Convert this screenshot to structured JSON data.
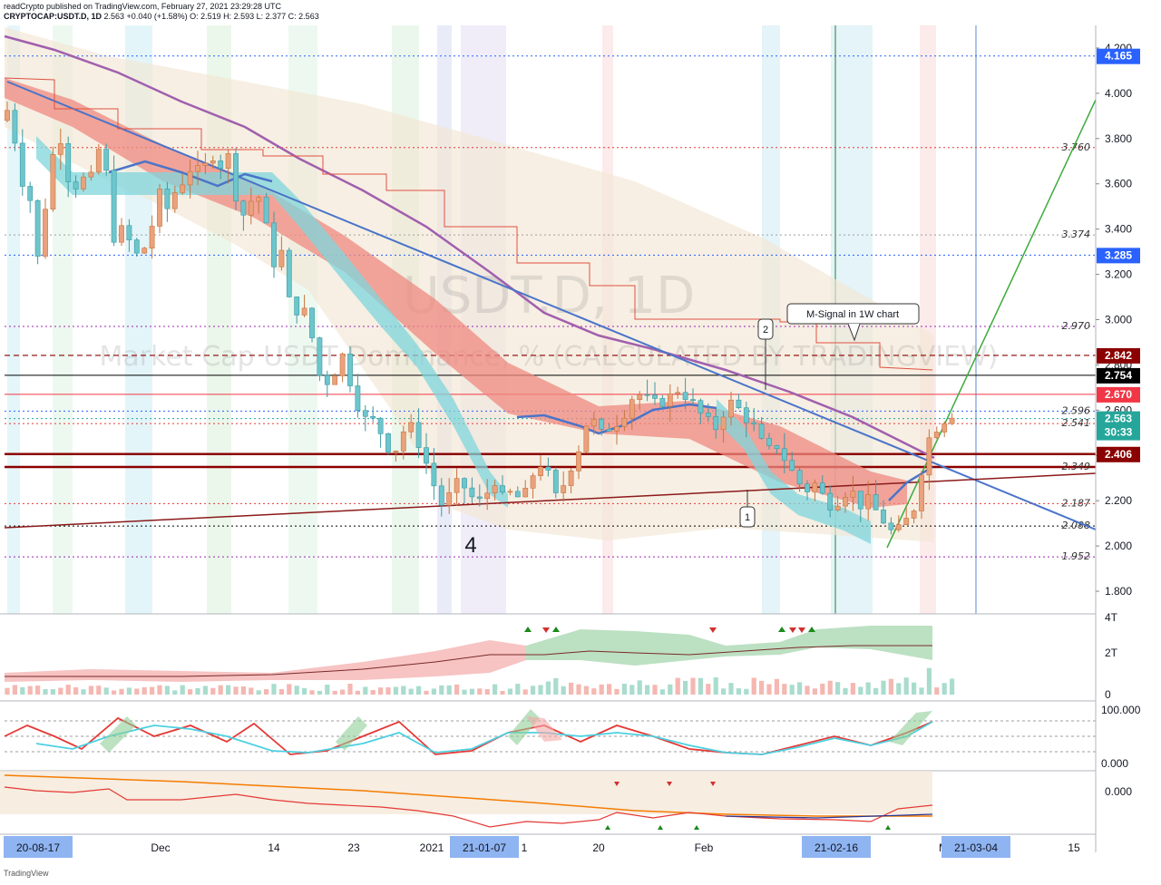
{
  "header": {
    "line1": "readCrypto published on TradingView.com, February 27, 2021 23:29:28 UTC",
    "symbol": "CRYPTOCAP:USDT.D, 1D",
    "ohlc": "2.563  +0.040 (+1.58%)  O: 2.519  H: 2.593  L: 2.377  C: 2.563"
  },
  "watermark": {
    "symbol": "USDT.D, 1D",
    "description": "Market Cap USDT Dominance, % (CALCULATED BY TRADINGVIEW)"
  },
  "annotations": {
    "m_signal": "M-Signal in 1W chart",
    "wave_label": "4",
    "callout_1": "1",
    "callout_2": "2"
  },
  "footer": {
    "brand": "TradingView"
  },
  "colors": {
    "bull": "#26a69a",
    "bear": "#ef5350",
    "ribbon_red": "#ef8a80",
    "ribbon_cyan": "#7fd6dc",
    "ma_purple": "#a15fae",
    "trend_blue": "#4a74c9",
    "dark_red": "#8b1a1a",
    "green_line": "#3daa3d"
  },
  "chart_data": {
    "type": "candlestick",
    "symbol": "CRYPTOCAP:USDT.D",
    "interval": "1D",
    "ylim": [
      1.7,
      4.3
    ],
    "y_ticks": [
      "1.800",
      "2.000",
      "2.200",
      "2.400",
      "2.600",
      "2.800",
      "3.000",
      "3.200",
      "3.400",
      "3.600",
      "3.800",
      "4.000",
      "4.200"
    ],
    "x_tick_labels": [
      {
        "label": "20-08-17",
        "highlight": true
      },
      {
        "label": "Dec",
        "highlight": false
      },
      {
        "label": "14",
        "highlight": false
      },
      {
        "label": "23",
        "highlight": false
      },
      {
        "label": "2021",
        "highlight": false
      },
      {
        "label": "21-01-07",
        "highlight": true
      },
      {
        "label": "1",
        "highlight": false
      },
      {
        "label": "20",
        "highlight": false
      },
      {
        "label": "Feb",
        "highlight": false
      },
      {
        "label": "21-02-16",
        "highlight": true
      },
      {
        "label": "M",
        "highlight": false
      },
      {
        "label": "21-03-04",
        "highlight": true
      },
      {
        "label": "15",
        "highlight": false
      }
    ],
    "price_tags": [
      {
        "label": "4.165",
        "value": 4.165,
        "color": "#2962ff"
      },
      {
        "label": "3.285",
        "value": 3.285,
        "color": "#2962ff"
      },
      {
        "label": "2.842",
        "value": 2.842,
        "color": "#8b0000"
      },
      {
        "label": "2.754",
        "value": 2.754,
        "color": "#000000"
      },
      {
        "label": "2.670",
        "value": 2.67,
        "color": "#f23645"
      },
      {
        "label": "2.563",
        "value": 2.563,
        "color": "#26a69a"
      },
      {
        "label": "2.406",
        "value": 2.406,
        "color": "#8b0000"
      }
    ],
    "countdown": "30:33",
    "levels": [
      {
        "label": "3.760",
        "value": 3.76,
        "color": "#e53935"
      },
      {
        "label": "3.374",
        "value": 3.374,
        "color": "#9e9e9e"
      },
      {
        "label": "2.970",
        "value": 2.97,
        "color": "#9c27b0"
      },
      {
        "label": "2.596",
        "value": 2.596,
        "color": "#2962ff"
      },
      {
        "label": "2.541",
        "value": 2.541,
        "color": "#e53935"
      },
      {
        "label": "2.349",
        "value": 2.349,
        "color": "#8b0000"
      },
      {
        "label": "2.187",
        "value": 2.187,
        "color": "#e53935"
      },
      {
        "label": "2.088",
        "value": 2.088,
        "color": "#000000"
      },
      {
        "label": "1.952",
        "value": 1.952,
        "color": "#9c27b0"
      }
    ],
    "panes": [
      {
        "name": "volume-pane",
        "y_ticks": [
          "4T",
          "2T",
          "0"
        ]
      },
      {
        "name": "stoch-pane",
        "y_ticks": [
          "100.000",
          "0.000"
        ]
      },
      {
        "name": "obv-pane",
        "y_ticks": [
          "0.000"
        ]
      }
    ]
  }
}
